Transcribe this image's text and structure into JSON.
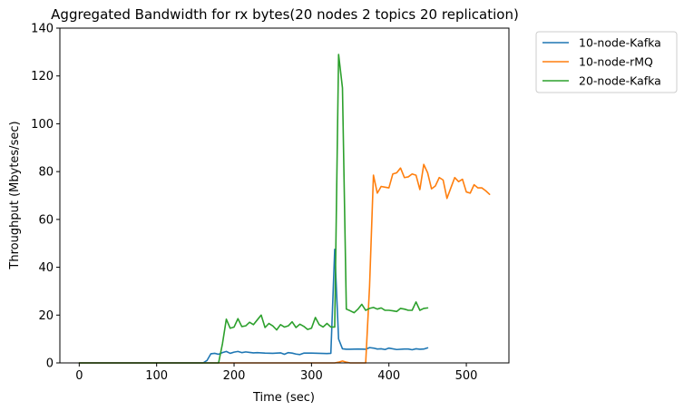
{
  "chart_data": {
    "type": "line",
    "title": "Aggregated Bandwidth for rx bytes(20 nodes 2 topics 20 replication)",
    "xlabel": "Time (sec)",
    "ylabel": "Throughput (Mbytes/sec)",
    "xlim": [
      -25,
      555
    ],
    "ylim": [
      0,
      140
    ],
    "xticks": [
      0,
      100,
      200,
      300,
      400,
      500
    ],
    "yticks": [
      0,
      20,
      40,
      60,
      80,
      100,
      120,
      140
    ],
    "grid": false,
    "legend_position": "outside-top-right",
    "series": [
      {
        "name": "10-node-Kafka",
        "color": "#1f77b4",
        "x": [
          0,
          10,
          20,
          30,
          40,
          50,
          60,
          70,
          80,
          90,
          100,
          110,
          120,
          130,
          140,
          150,
          160,
          165,
          170,
          175,
          180,
          185,
          190,
          195,
          200,
          205,
          210,
          215,
          220,
          225,
          230,
          240,
          250,
          260,
          265,
          270,
          275,
          280,
          285,
          290,
          300,
          310,
          320,
          325,
          330,
          335,
          340,
          345,
          350,
          360,
          370,
          375,
          380,
          385,
          390,
          395,
          400,
          410,
          420,
          425,
          430,
          435,
          440,
          445,
          450
        ],
        "y": [
          0,
          0,
          0,
          0,
          0,
          0,
          0,
          0,
          0,
          0,
          0,
          0,
          0,
          0,
          0,
          0,
          0,
          1,
          3.8,
          4,
          3.6,
          4.3,
          4.8,
          4,
          4.5,
          4.8,
          4.3,
          4.6,
          4.4,
          4.2,
          4.3,
          4.1,
          4.0,
          4.2,
          3.6,
          4.3,
          4.1,
          3.7,
          3.5,
          4.1,
          4.1,
          4.0,
          3.9,
          4.0,
          47.5,
          10,
          5.9,
          5.7,
          5.7,
          5.8,
          5.7,
          6.4,
          6.2,
          5.8,
          5.9,
          5.6,
          6.2,
          5.6,
          5.8,
          5.8,
          5.5,
          5.9,
          5.7,
          5.8,
          6.3
        ]
      },
      {
        "name": "10-node-rMQ",
        "color": "#ff7f0e",
        "x": [
          0,
          50,
          100,
          150,
          200,
          250,
          300,
          330,
          335,
          340,
          345,
          350,
          360,
          365,
          370,
          375,
          380,
          385,
          390,
          395,
          400,
          405,
          410,
          415,
          420,
          425,
          430,
          435,
          440,
          445,
          450,
          455,
          460,
          465,
          470,
          475,
          480,
          485,
          490,
          495,
          500,
          505,
          510,
          515,
          520,
          525,
          530
        ],
        "y": [
          0,
          0,
          0,
          0,
          0,
          0,
          0,
          0,
          0.3,
          0.8,
          0.3,
          0,
          0,
          0,
          0,
          32,
          78.5,
          71,
          73.8,
          73.5,
          73.2,
          79,
          79.5,
          81.5,
          77.5,
          77.8,
          79,
          78.5,
          72.5,
          83,
          79.5,
          72.8,
          74,
          77.5,
          76.5,
          68.8,
          73.2,
          77.5,
          75.8,
          76.8,
          71.5,
          71,
          74.5,
          73.2,
          73.2,
          72,
          70.5
        ]
      },
      {
        "name": "20-node-Kafka",
        "color": "#2ca02c",
        "x": [
          0,
          50,
          100,
          150,
          180,
          185,
          190,
          195,
          200,
          205,
          210,
          215,
          220,
          225,
          230,
          235,
          240,
          245,
          250,
          255,
          260,
          265,
          270,
          275,
          280,
          285,
          290,
          295,
          300,
          305,
          310,
          315,
          320,
          325,
          330,
          335,
          340,
          345,
          350,
          355,
          360,
          365,
          370,
          375,
          380,
          385,
          390,
          395,
          400,
          405,
          410,
          415,
          420,
          425,
          430,
          435,
          440,
          445,
          450
        ],
        "y": [
          0,
          0,
          0,
          0,
          0,
          8,
          18.3,
          14.5,
          15,
          18.5,
          15.2,
          15.5,
          17,
          16,
          18,
          20,
          14.8,
          16.5,
          15.5,
          13.8,
          16,
          15,
          15.5,
          17.2,
          14.8,
          16.2,
          15.3,
          14,
          14.5,
          19,
          16,
          15,
          16.5,
          15,
          15,
          129,
          115,
          22.5,
          21.8,
          21,
          22.5,
          24.5,
          22,
          22.8,
          23.2,
          22.5,
          23,
          22,
          22,
          21.8,
          21.5,
          22.8,
          22.5,
          22,
          22,
          25.5,
          22,
          22.8,
          23
        ]
      }
    ]
  }
}
